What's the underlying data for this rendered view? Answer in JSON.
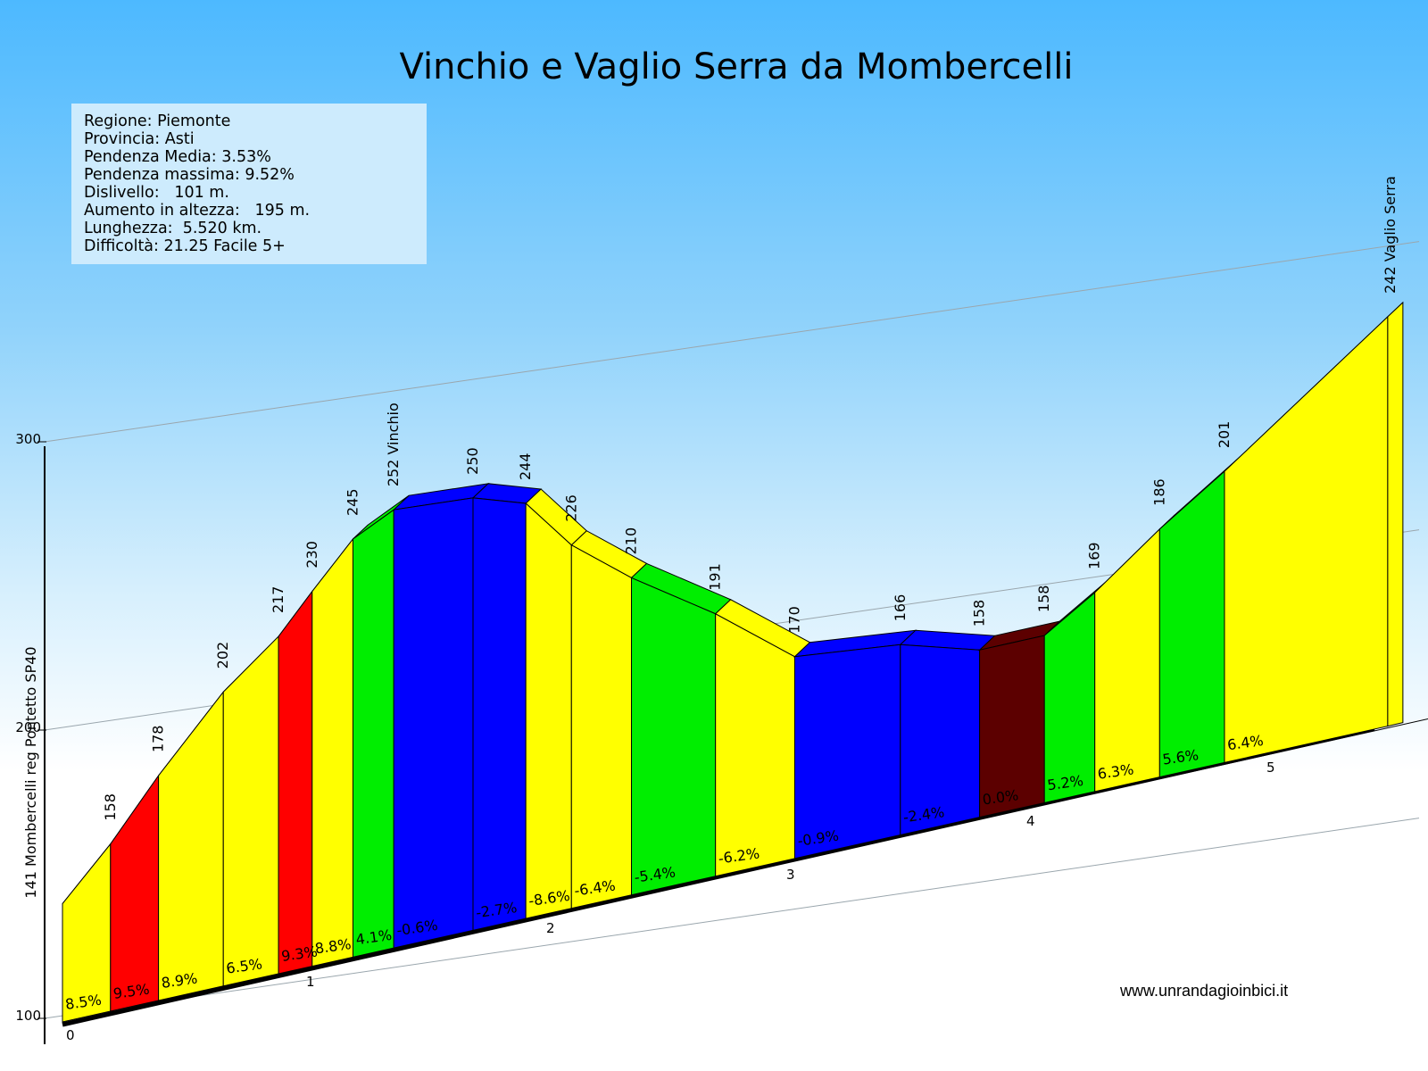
{
  "chart_data": {
    "type": "area",
    "title": "Vinchio e Vaglio Serra da Mombercelli",
    "info": {
      "regione": "Regione: Piemonte",
      "provincia": "Provincia: Asti",
      "pendenza_media": "Pendenza Media: 3.53%",
      "pendenza_massima": "Pendenza massima: 9.52%",
      "dislivello": "Dislivello:   101 m.",
      "aumento": "Aumento in altezza:   195 m.",
      "lunghezza": "Lunghezza:  5.520 km.",
      "difficolta": "Difficoltà: 21.25 Facile 5+"
    },
    "website": "www.unrandagioinbici.it",
    "y_axis": {
      "ticks": [
        100,
        200,
        300
      ],
      "ylim": [
        100,
        300
      ]
    },
    "x_axis": {
      "unit": "km",
      "ticks": [
        0,
        1,
        2,
        3,
        4,
        5
      ],
      "xlim": [
        0,
        5.52
      ]
    },
    "colors": {
      "yellow": "#ffff00",
      "red": "#ff0000",
      "green": "#00ee00",
      "blue": "#0000ff",
      "brown": "#5c0000"
    },
    "points": [
      {
        "km": 0.0,
        "elev": 141,
        "label": "141 Mombercelli reg Pontetto SP40"
      },
      {
        "km": 0.2,
        "elev": 158,
        "label": "158"
      },
      {
        "km": 0.4,
        "elev": 178,
        "label": "178"
      },
      {
        "km": 0.67,
        "elev": 202,
        "label": "202"
      },
      {
        "km": 0.9,
        "elev": 217,
        "label": "217"
      },
      {
        "km": 1.04,
        "elev": 230,
        "label": "230"
      },
      {
        "km": 1.21,
        "elev": 245,
        "label": "245"
      },
      {
        "km": 1.38,
        "elev": 252,
        "label": "252 Vinchio"
      },
      {
        "km": 1.71,
        "elev": 250,
        "label": "250"
      },
      {
        "km": 1.93,
        "elev": 244,
        "label": "244"
      },
      {
        "km": 2.12,
        "elev": 226,
        "label": "226"
      },
      {
        "km": 2.37,
        "elev": 210,
        "label": "210"
      },
      {
        "km": 2.72,
        "elev": 191,
        "label": "191"
      },
      {
        "km": 3.05,
        "elev": 170,
        "label": "170"
      },
      {
        "km": 3.49,
        "elev": 166,
        "label": "166"
      },
      {
        "km": 3.82,
        "elev": 158,
        "label": "158"
      },
      {
        "km": 4.09,
        "elev": 158,
        "label": "158"
      },
      {
        "km": 4.3,
        "elev": 169,
        "label": "169"
      },
      {
        "km": 4.57,
        "elev": 186,
        "label": "186"
      },
      {
        "km": 4.84,
        "elev": 201,
        "label": "201"
      },
      {
        "km": 5.52,
        "elev": 242,
        "label": "242 Vaglio Serra"
      }
    ],
    "segments": [
      {
        "grade": "8.5%",
        "color": "yellow"
      },
      {
        "grade": "9.5%",
        "color": "red"
      },
      {
        "grade": "8.9%",
        "color": "yellow"
      },
      {
        "grade": "6.5%",
        "color": "yellow"
      },
      {
        "grade": "9.3%",
        "color": "red"
      },
      {
        "grade": "8.8%",
        "color": "yellow"
      },
      {
        "grade": "4.1%",
        "color": "green"
      },
      {
        "grade": "-0.6%",
        "color": "blue"
      },
      {
        "grade": "-2.7%",
        "color": "blue"
      },
      {
        "grade": "-8.6%",
        "color": "yellow"
      },
      {
        "grade": "-6.4%",
        "color": "yellow"
      },
      {
        "grade": "-5.4%",
        "color": "green"
      },
      {
        "grade": "-6.2%",
        "color": "yellow"
      },
      {
        "grade": "-0.9%",
        "color": "blue"
      },
      {
        "grade": "-2.4%",
        "color": "blue"
      },
      {
        "grade": "0.0%",
        "color": "brown"
      },
      {
        "grade": "5.2%",
        "color": "green"
      },
      {
        "grade": "6.3%",
        "color": "yellow"
      },
      {
        "grade": "5.6%",
        "color": "green"
      },
      {
        "grade": "6.4%",
        "color": "yellow"
      }
    ]
  }
}
